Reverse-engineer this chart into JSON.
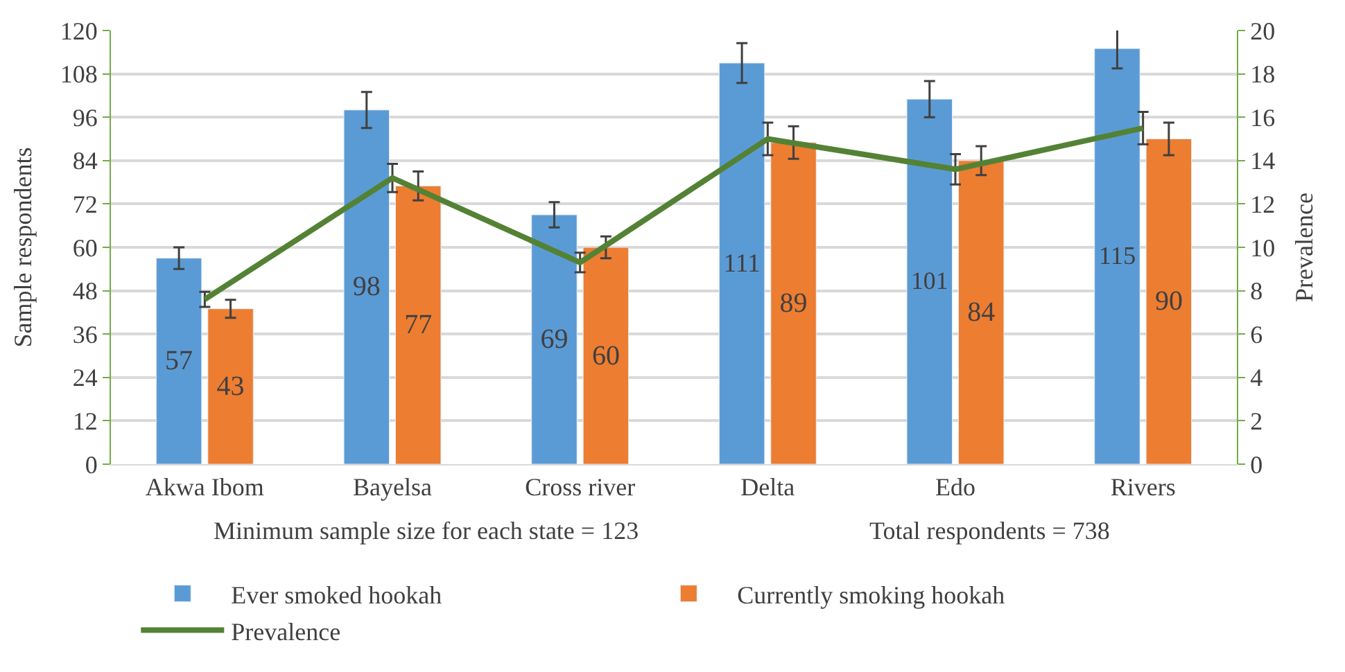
{
  "chart_data": {
    "type": "bar",
    "categories": [
      "Akwa Ibom",
      "Bayelsa",
      "Cross river",
      "Delta",
      "Edo",
      "Rivers"
    ],
    "series": [
      {
        "name": "Ever smoked hookah",
        "color": "#5b9bd5",
        "values": [
          57,
          98,
          69,
          111,
          101,
          115
        ],
        "value_labels": [
          "57",
          "98",
          "69",
          "111",
          "101",
          "115"
        ],
        "errors": [
          3,
          5,
          3.5,
          5.5,
          5,
          5.5
        ]
      },
      {
        "name": "Currently smoking hookah",
        "color": "#ed7d31",
        "values": [
          43,
          77,
          60,
          89,
          84,
          90
        ],
        "value_labels": [
          "43",
          "77",
          "60",
          "89",
          "84",
          "90"
        ],
        "errors": [
          2.5,
          4,
          3,
          4.5,
          4,
          4.5
        ]
      },
      {
        "name": "Prevalence",
        "type": "line",
        "axis": "y2",
        "color": "#548235",
        "values": [
          7.6,
          13.2,
          9.3,
          15.0,
          13.6,
          15.5
        ],
        "errors": [
          0.35,
          0.65,
          0.45,
          0.75,
          0.7,
          0.75
        ]
      }
    ],
    "ylabel": "Sample respondents",
    "y2label": "Prevalence",
    "ylim": [
      0,
      120
    ],
    "yticks": [
      0,
      12,
      24,
      36,
      48,
      60,
      72,
      84,
      96,
      108,
      120
    ],
    "y2lim": [
      0,
      20
    ],
    "y2ticks": [
      0,
      2,
      4,
      6,
      8,
      10,
      12,
      14,
      16,
      18,
      20
    ],
    "annotations": [
      "Minimum sample size for each state = 123",
      "Total respondents = 738"
    ],
    "grid": "y",
    "legend": "bottom",
    "marker": "none",
    "line_style": "solid"
  }
}
